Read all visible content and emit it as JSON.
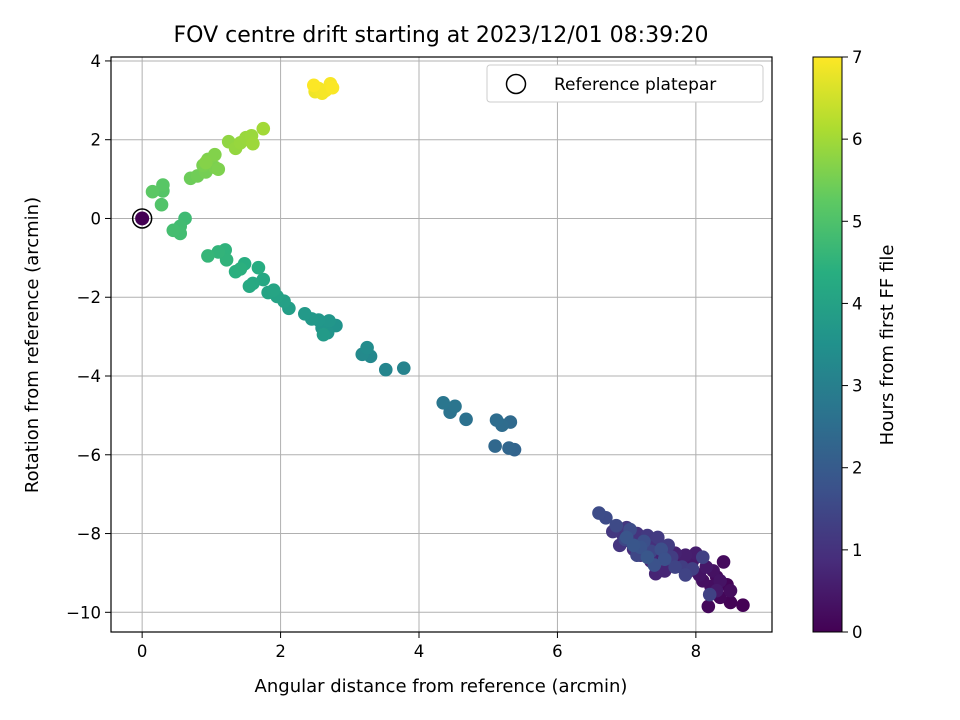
{
  "chart_data": {
    "type": "scatter",
    "title": "FOV centre drift starting at 2023/12/01 08:39:20",
    "xlabel": "Angular distance from reference (arcmin)",
    "ylabel": "Rotation from reference (arcmin)",
    "xlim": [
      -0.45,
      9.1
    ],
    "ylim": [
      -10.5,
      4.1
    ],
    "xticks": [
      0,
      2,
      4,
      6,
      8
    ],
    "xtick_labels": [
      "0",
      "2",
      "4",
      "6",
      "8"
    ],
    "yticks": [
      4,
      2,
      0,
      -2,
      -4,
      -6,
      -8,
      -10
    ],
    "ytick_labels": [
      "4",
      "2",
      "0",
      "−2",
      "−4",
      "−6",
      "−8",
      "−10"
    ],
    "grid": true,
    "legend": {
      "position": "top-right",
      "entries": [
        "Reference platepar"
      ]
    },
    "colorbar": {
      "label": "Hours from first FF file",
      "colormap": "viridis",
      "range": [
        0,
        7
      ],
      "ticks": [
        "0",
        "1",
        "2",
        "3",
        "4",
        "5",
        "6",
        "7"
      ]
    },
    "reference_point": {
      "x": 0,
      "y": 0,
      "c": 0
    },
    "points": [
      {
        "x": 8.68,
        "y": -9.82,
        "c": 0.02
      },
      {
        "x": 8.5,
        "y": -9.75,
        "c": 0.05
      },
      {
        "x": 8.45,
        "y": -9.3,
        "c": 0.08
      },
      {
        "x": 8.35,
        "y": -9.62,
        "c": 0.11
      },
      {
        "x": 8.18,
        "y": -9.85,
        "c": 0.14
      },
      {
        "x": 8.3,
        "y": -9.1,
        "c": 0.17
      },
      {
        "x": 8.4,
        "y": -8.72,
        "c": 0.2
      },
      {
        "x": 8.5,
        "y": -9.45,
        "c": 0.23
      },
      {
        "x": 8.22,
        "y": -9.35,
        "c": 0.26
      },
      {
        "x": 8.1,
        "y": -9.2,
        "c": 0.29
      },
      {
        "x": 8.25,
        "y": -8.95,
        "c": 0.32
      },
      {
        "x": 8.35,
        "y": -9.2,
        "c": 0.35
      },
      {
        "x": 8.05,
        "y": -9.05,
        "c": 0.38
      },
      {
        "x": 7.9,
        "y": -8.95,
        "c": 0.41
      },
      {
        "x": 8.15,
        "y": -8.85,
        "c": 0.44
      },
      {
        "x": 8.3,
        "y": -9.45,
        "c": 0.47
      },
      {
        "x": 7.95,
        "y": -8.7,
        "c": 0.5
      },
      {
        "x": 7.75,
        "y": -8.8,
        "c": 0.53
      },
      {
        "x": 8.0,
        "y": -8.5,
        "c": 0.56
      },
      {
        "x": 7.85,
        "y": -8.55,
        "c": 0.59
      },
      {
        "x": 7.6,
        "y": -8.75,
        "c": 0.62
      },
      {
        "x": 7.7,
        "y": -8.5,
        "c": 0.65
      },
      {
        "x": 7.5,
        "y": -8.6,
        "c": 0.68
      },
      {
        "x": 7.42,
        "y": -9.02,
        "c": 0.71
      },
      {
        "x": 7.55,
        "y": -8.95,
        "c": 0.74
      },
      {
        "x": 7.35,
        "y": -8.7,
        "c": 0.77
      },
      {
        "x": 7.3,
        "y": -8.45,
        "c": 0.8
      },
      {
        "x": 7.5,
        "y": -8.35,
        "c": 0.83
      },
      {
        "x": 7.2,
        "y": -8.55,
        "c": 0.86
      },
      {
        "x": 7.1,
        "y": -8.4,
        "c": 0.89
      },
      {
        "x": 7.25,
        "y": -8.25,
        "c": 0.92
      },
      {
        "x": 7.4,
        "y": -8.3,
        "c": 0.95
      },
      {
        "x": 7.05,
        "y": -8.2,
        "c": 0.98
      },
      {
        "x": 6.95,
        "y": -8.05,
        "c": 1.01
      },
      {
        "x": 7.15,
        "y": -8.0,
        "c": 1.04
      },
      {
        "x": 6.9,
        "y": -8.3,
        "c": 1.07
      },
      {
        "x": 7.0,
        "y": -7.85,
        "c": 1.1
      },
      {
        "x": 6.8,
        "y": -7.95,
        "c": 1.13
      },
      {
        "x": 7.3,
        "y": -8.05,
        "c": 1.16
      },
      {
        "x": 7.45,
        "y": -8.1,
        "c": 1.19
      },
      {
        "x": 7.6,
        "y": -8.3,
        "c": 1.22
      },
      {
        "x": 7.65,
        "y": -8.6,
        "c": 1.25
      },
      {
        "x": 7.8,
        "y": -8.85,
        "c": 1.28
      },
      {
        "x": 7.95,
        "y": -8.9,
        "c": 1.31
      },
      {
        "x": 8.1,
        "y": -8.6,
        "c": 1.34
      },
      {
        "x": 8.2,
        "y": -9.55,
        "c": 1.37
      },
      {
        "x": 7.85,
        "y": -9.05,
        "c": 1.4
      },
      {
        "x": 7.7,
        "y": -8.85,
        "c": 1.43
      },
      {
        "x": 7.35,
        "y": -8.45,
        "c": 1.46
      },
      {
        "x": 7.15,
        "y": -8.55,
        "c": 1.49
      },
      {
        "x": 6.98,
        "y": -8.15,
        "c": 1.52
      },
      {
        "x": 6.85,
        "y": -7.8,
        "c": 1.55
      },
      {
        "x": 6.7,
        "y": -7.6,
        "c": 1.58
      },
      {
        "x": 6.6,
        "y": -7.48,
        "c": 1.61
      },
      {
        "x": 7.05,
        "y": -7.9,
        "c": 1.64
      },
      {
        "x": 7.25,
        "y": -8.2,
        "c": 1.67
      },
      {
        "x": 7.5,
        "y": -8.4,
        "c": 1.7
      },
      {
        "x": 7.55,
        "y": -8.65,
        "c": 1.73
      },
      {
        "x": 7.4,
        "y": -8.8,
        "c": 1.76
      },
      {
        "x": 7.2,
        "y": -8.35,
        "c": 1.79
      },
      {
        "x": 7.0,
        "y": -8.1,
        "c": 1.82
      },
      {
        "x": 7.1,
        "y": -8.3,
        "c": 1.85
      },
      {
        "x": 7.3,
        "y": -8.6,
        "c": 1.88
      },
      {
        "x": 5.38,
        "y": -5.87,
        "c": 2.25
      },
      {
        "x": 5.3,
        "y": -5.83,
        "c": 2.3
      },
      {
        "x": 5.1,
        "y": -5.78,
        "c": 2.35
      },
      {
        "x": 5.32,
        "y": -5.17,
        "c": 2.4
      },
      {
        "x": 5.2,
        "y": -5.25,
        "c": 2.45
      },
      {
        "x": 5.12,
        "y": -5.12,
        "c": 2.5
      },
      {
        "x": 4.68,
        "y": -5.1,
        "c": 2.6
      },
      {
        "x": 4.45,
        "y": -4.92,
        "c": 2.65
      },
      {
        "x": 4.52,
        "y": -4.77,
        "c": 2.7
      },
      {
        "x": 4.35,
        "y": -4.68,
        "c": 2.75
      },
      {
        "x": 3.78,
        "y": -3.8,
        "c": 3.1
      },
      {
        "x": 3.52,
        "y": -3.84,
        "c": 3.15
      },
      {
        "x": 3.3,
        "y": -3.5,
        "c": 3.25
      },
      {
        "x": 3.18,
        "y": -3.45,
        "c": 3.3
      },
      {
        "x": 3.25,
        "y": -3.28,
        "c": 3.35
      },
      {
        "x": 2.8,
        "y": -2.72,
        "c": 3.55
      },
      {
        "x": 2.68,
        "y": -2.9,
        "c": 3.6
      },
      {
        "x": 2.6,
        "y": -2.78,
        "c": 3.62
      },
      {
        "x": 2.7,
        "y": -2.6,
        "c": 3.65
      },
      {
        "x": 2.55,
        "y": -2.58,
        "c": 3.68
      },
      {
        "x": 2.45,
        "y": -2.55,
        "c": 3.7
      },
      {
        "x": 2.35,
        "y": -2.42,
        "c": 3.75
      },
      {
        "x": 2.62,
        "y": -2.95,
        "c": 3.78
      },
      {
        "x": 2.12,
        "y": -2.28,
        "c": 3.9
      },
      {
        "x": 2.05,
        "y": -2.1,
        "c": 3.95
      },
      {
        "x": 1.95,
        "y": -1.98,
        "c": 4.0
      },
      {
        "x": 1.82,
        "y": -1.88,
        "c": 4.05
      },
      {
        "x": 1.9,
        "y": -1.82,
        "c": 4.08
      },
      {
        "x": 1.75,
        "y": -1.55,
        "c": 4.15
      },
      {
        "x": 1.6,
        "y": -1.65,
        "c": 4.2
      },
      {
        "x": 1.55,
        "y": -1.72,
        "c": 4.22
      },
      {
        "x": 1.68,
        "y": -1.25,
        "c": 4.3
      },
      {
        "x": 1.48,
        "y": -1.15,
        "c": 4.35
      },
      {
        "x": 1.35,
        "y": -1.35,
        "c": 4.4
      },
      {
        "x": 1.42,
        "y": -1.28,
        "c": 4.42
      },
      {
        "x": 1.2,
        "y": -0.8,
        "c": 4.5
      },
      {
        "x": 1.22,
        "y": -1.05,
        "c": 4.52
      },
      {
        "x": 1.1,
        "y": -0.85,
        "c": 4.55
      },
      {
        "x": 0.95,
        "y": -0.95,
        "c": 4.6
      },
      {
        "x": 0.62,
        "y": 0.0,
        "c": 4.75
      },
      {
        "x": 0.55,
        "y": -0.2,
        "c": 4.8
      },
      {
        "x": 0.55,
        "y": -0.38,
        "c": 4.82
      },
      {
        "x": 0.45,
        "y": -0.3,
        "c": 4.85
      },
      {
        "x": 0.28,
        "y": 0.35,
        "c": 5.05
      },
      {
        "x": 0.3,
        "y": 0.7,
        "c": 5.1
      },
      {
        "x": 0.3,
        "y": 0.85,
        "c": 5.15
      },
      {
        "x": 0.15,
        "y": 0.68,
        "c": 5.2
      },
      {
        "x": 0.7,
        "y": 1.02,
        "c": 5.4
      },
      {
        "x": 0.8,
        "y": 1.08,
        "c": 5.45
      },
      {
        "x": 0.92,
        "y": 1.18,
        "c": 5.5
      },
      {
        "x": 0.88,
        "y": 1.35,
        "c": 5.55
      },
      {
        "x": 1.05,
        "y": 1.3,
        "c": 5.58
      },
      {
        "x": 1.1,
        "y": 1.25,
        "c": 5.6
      },
      {
        "x": 0.95,
        "y": 1.5,
        "c": 5.62
      },
      {
        "x": 1.05,
        "y": 1.62,
        "c": 5.65
      },
      {
        "x": 0.92,
        "y": 1.42,
        "c": 5.68
      },
      {
        "x": 1.25,
        "y": 1.95,
        "c": 5.8
      },
      {
        "x": 1.35,
        "y": 1.78,
        "c": 5.85
      },
      {
        "x": 1.42,
        "y": 1.92,
        "c": 5.88
      },
      {
        "x": 1.5,
        "y": 2.05,
        "c": 5.9
      },
      {
        "x": 1.58,
        "y": 2.1,
        "c": 5.92
      },
      {
        "x": 1.6,
        "y": 1.9,
        "c": 5.95
      },
      {
        "x": 1.75,
        "y": 2.28,
        "c": 6.0
      },
      {
        "x": 2.5,
        "y": 3.22,
        "c": 6.85
      },
      {
        "x": 2.55,
        "y": 3.3,
        "c": 6.88
      },
      {
        "x": 2.6,
        "y": 3.18,
        "c": 6.9
      },
      {
        "x": 2.65,
        "y": 3.25,
        "c": 6.92
      },
      {
        "x": 2.72,
        "y": 3.42,
        "c": 6.95
      },
      {
        "x": 2.75,
        "y": 3.32,
        "c": 6.97
      },
      {
        "x": 2.48,
        "y": 3.38,
        "c": 6.99
      }
    ]
  }
}
